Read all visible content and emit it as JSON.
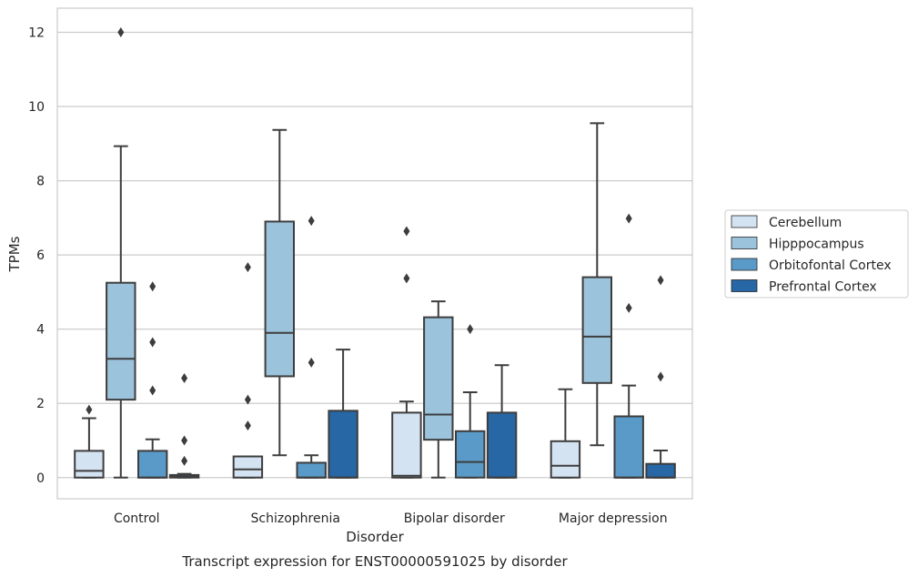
{
  "chart_data": {
    "type": "box",
    "title": "",
    "caption": "Transcript expression for ENST00000591025 by disorder",
    "xlabel": "Disorder",
    "ylabel": "TPMs",
    "ylim": [
      -0.57,
      12.65
    ],
    "yticks": [
      0,
      2,
      4,
      6,
      8,
      10,
      12
    ],
    "grid": "horizontal",
    "legend_position": "right",
    "categories": [
      "Control",
      "Schizophrenia",
      "Bipolar disorder",
      "Major depression"
    ],
    "series": [
      {
        "name": "Cerebellum",
        "color": "#d4e3f1",
        "boxes": [
          {
            "q1": 0.0,
            "median": 0.18,
            "q3": 0.72,
            "whislo": 0.0,
            "whishi": 1.6,
            "fliers": [
              1.83
            ]
          },
          {
            "q1": 0.0,
            "median": 0.22,
            "q3": 0.57,
            "whislo": 0.0,
            "whishi": 0.57,
            "fliers": [
              2.1,
              1.4,
              5.67
            ]
          },
          {
            "q1": 0.0,
            "median": 0.05,
            "q3": 1.75,
            "whislo": 0.0,
            "whishi": 2.05,
            "fliers": [
              5.37,
              6.64
            ]
          },
          {
            "q1": 0.0,
            "median": 0.32,
            "q3": 0.98,
            "whislo": 0.0,
            "whishi": 2.38,
            "fliers": []
          }
        ]
      },
      {
        "name": "Hipppocampus",
        "color": "#9cc3dc",
        "boxes": [
          {
            "q1": 2.1,
            "median": 3.2,
            "q3": 5.25,
            "whislo": 0.0,
            "whishi": 8.93,
            "fliers": [
              12.0
            ]
          },
          {
            "q1": 2.73,
            "median": 3.9,
            "q3": 6.9,
            "whislo": 0.6,
            "whishi": 9.37,
            "fliers": []
          },
          {
            "q1": 1.02,
            "median": 1.7,
            "q3": 4.32,
            "whislo": 0.0,
            "whishi": 4.75,
            "fliers": []
          },
          {
            "q1": 2.55,
            "median": 3.8,
            "q3": 5.4,
            "whislo": 0.87,
            "whishi": 9.55,
            "fliers": []
          }
        ]
      },
      {
        "name": "Orbitofontal Cortex",
        "color": "#5a9ac8",
        "boxes": [
          {
            "q1": 0.0,
            "median": 0.0,
            "q3": 0.72,
            "whislo": 0.0,
            "whishi": 1.03,
            "fliers": [
              2.35,
              3.65,
              5.15
            ]
          },
          {
            "q1": 0.0,
            "median": 0.0,
            "q3": 0.4,
            "whislo": 0.0,
            "whishi": 0.6,
            "fliers": [
              3.1,
              6.92
            ]
          },
          {
            "q1": 0.0,
            "median": 0.42,
            "q3": 1.25,
            "whislo": 0.0,
            "whishi": 2.3,
            "fliers": [
              4.0
            ]
          },
          {
            "q1": 0.0,
            "median": 0.0,
            "q3": 1.65,
            "whislo": 0.0,
            "whishi": 2.48,
            "fliers": [
              4.57,
              6.98
            ]
          }
        ]
      },
      {
        "name": "Prefrontal Cortex",
        "color": "#2767a6",
        "boxes": [
          {
            "q1": 0.0,
            "median": 0.02,
            "q3": 0.07,
            "whislo": 0.0,
            "whishi": 0.1,
            "fliers": [
              0.45,
              1.0,
              2.68
            ]
          },
          {
            "q1": 0.0,
            "median": 0.0,
            "q3": 1.8,
            "whislo": 0.0,
            "whishi": 3.45,
            "fliers": []
          },
          {
            "q1": 0.0,
            "median": 0.0,
            "q3": 1.75,
            "whislo": 0.0,
            "whishi": 3.03,
            "fliers": []
          },
          {
            "q1": 0.0,
            "median": 0.0,
            "q3": 0.37,
            "whislo": 0.0,
            "whishi": 0.73,
            "fliers": [
              2.72,
              5.32
            ]
          }
        ]
      }
    ]
  }
}
